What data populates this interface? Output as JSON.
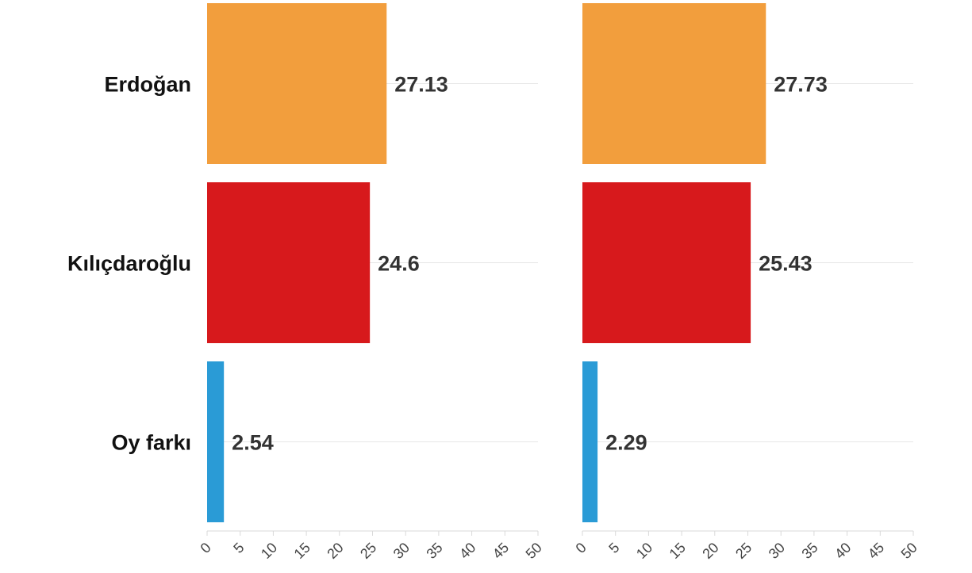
{
  "chart_data": [
    {
      "type": "bar",
      "orientation": "horizontal",
      "categories": [
        "Erdoğan",
        "Kılıçdaroğlu",
        "Oy farkı"
      ],
      "values": [
        27.13,
        24.6,
        2.54
      ],
      "value_labels": [
        "27.13",
        "24.6",
        "2.54"
      ],
      "xlim": [
        0,
        50
      ],
      "xticks": [
        0,
        5,
        10,
        15,
        20,
        25,
        30,
        35,
        40,
        45,
        50
      ],
      "tick_labels": [
        "0",
        "5",
        "10",
        "15",
        "20",
        "25",
        "30",
        "35",
        "40",
        "45",
        "50"
      ],
      "grid": true,
      "bar_colors": [
        "#f29e3d",
        "#d7191c",
        "#2a9bd6"
      ]
    },
    {
      "type": "bar",
      "orientation": "horizontal",
      "categories": [
        "Erdoğan",
        "Kılıçdaroğlu",
        "Oy farkı"
      ],
      "values": [
        27.73,
        25.43,
        2.29
      ],
      "value_labels": [
        "27.73",
        "25.43",
        "2.29"
      ],
      "xlim": [
        0,
        50
      ],
      "xticks": [
        0,
        5,
        10,
        15,
        20,
        25,
        30,
        35,
        40,
        45,
        50
      ],
      "tick_labels": [
        "0",
        "5",
        "10",
        "15",
        "20",
        "25",
        "30",
        "35",
        "40",
        "45",
        "50"
      ],
      "grid": true,
      "bar_colors": [
        "#f29e3d",
        "#d7191c",
        "#2a9bd6"
      ]
    }
  ]
}
